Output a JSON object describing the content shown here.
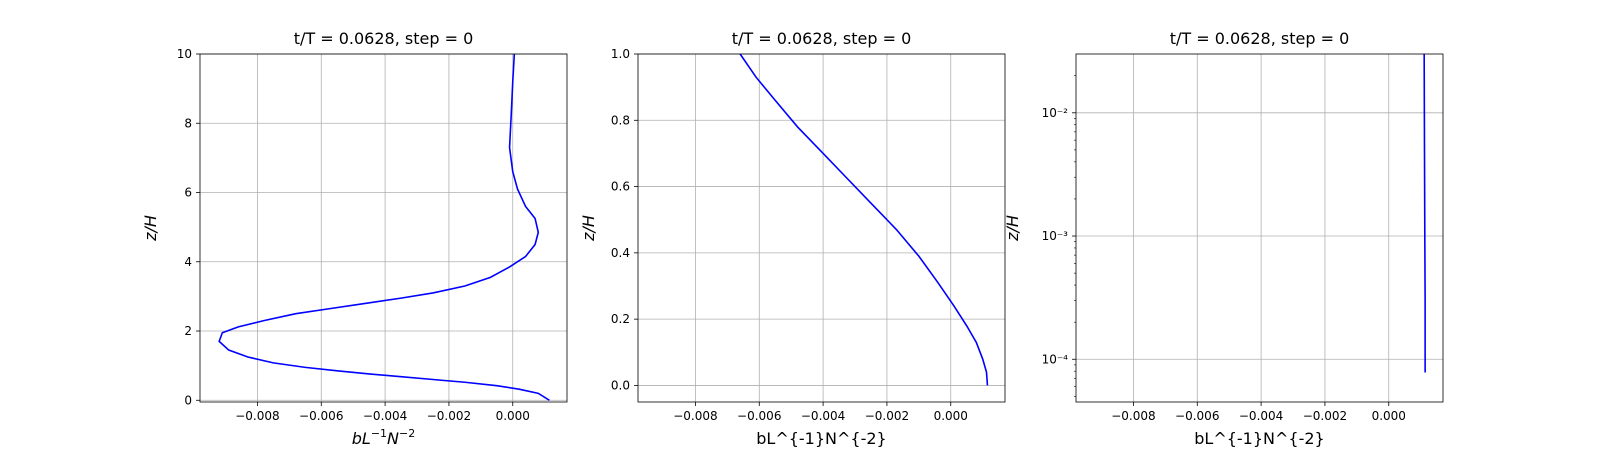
{
  "chart_data": [
    {
      "type": "line",
      "title": "t/T = 0.0628, step = 0",
      "xlabel": "bL^{-1}N^{-2}",
      "xlabel_rendered": true,
      "ylabel": "z/H",
      "xlim": [
        -0.0098,
        0.0017
      ],
      "ylim": [
        -0.05,
        10
      ],
      "yscale": "linear",
      "xticks": [
        -0.008,
        -0.006,
        -0.004,
        -0.002,
        0.0
      ],
      "xtick_labels": [
        "−0.008",
        "−0.006",
        "−0.004",
        "−0.002",
        "0.000"
      ],
      "yticks": [
        0,
        2,
        4,
        6,
        8,
        10
      ],
      "ytick_labels": [
        "0",
        "2",
        "4",
        "6",
        "8",
        "10"
      ],
      "grid": true,
      "series": [
        {
          "color": "#0000ff",
          "x": [
            0.00115,
            0.0008,
            0.0002,
            -0.0005,
            -0.0015,
            -0.0025,
            -0.0035,
            -0.0045,
            -0.0055,
            -0.0065,
            -0.0075,
            -0.0083,
            -0.0089,
            -0.0092,
            -0.0091,
            -0.0086,
            -0.0078,
            -0.0068,
            -0.0057,
            -0.0046,
            -0.0035,
            -0.0025,
            -0.0015,
            -0.0007,
            -0.0001,
            0.0004,
            0.0007,
            0.0008,
            0.0007,
            0.0004,
            0.00015,
            0.0,
            -0.0001,
            -5e-05,
            0.0,
            5e-05
          ],
          "y": [
            0.0,
            0.2,
            0.32,
            0.42,
            0.52,
            0.6,
            0.68,
            0.76,
            0.85,
            0.95,
            1.08,
            1.25,
            1.45,
            1.7,
            1.95,
            2.12,
            2.3,
            2.5,
            2.65,
            2.8,
            2.95,
            3.1,
            3.3,
            3.55,
            3.85,
            4.15,
            4.5,
            4.85,
            5.25,
            5.6,
            6.1,
            6.6,
            7.3,
            8.2,
            9.2,
            10.0
          ]
        }
      ]
    },
    {
      "type": "line",
      "title": "t/T = 0.0628, step = 0",
      "xlabel": "bL^{-1}N^{-2}",
      "ylabel": "z/H",
      "xlim": [
        -0.0098,
        0.0017
      ],
      "ylim": [
        -0.05,
        1.0
      ],
      "yscale": "linear",
      "xticks": [
        -0.008,
        -0.006,
        -0.004,
        -0.002,
        0.0
      ],
      "xtick_labels": [
        "−0.008",
        "−0.006",
        "−0.004",
        "−0.002",
        "0.000"
      ],
      "yticks": [
        0.0,
        0.2,
        0.4,
        0.6,
        0.8,
        1.0
      ],
      "ytick_labels": [
        "0.0",
        "0.2",
        "0.4",
        "0.6",
        "0.8",
        "1.0"
      ],
      "grid": true,
      "series": [
        {
          "color": "#0000ff",
          "x": [
            0.00115,
            0.00112,
            0.001,
            0.0008,
            0.0005,
            0.0001,
            -0.0004,
            -0.001,
            -0.0017,
            -0.0025,
            -0.0033,
            -0.0041,
            -0.0048,
            -0.0055,
            -0.0061,
            -0.0066
          ],
          "y": [
            0.0,
            0.04,
            0.08,
            0.13,
            0.18,
            0.24,
            0.31,
            0.39,
            0.47,
            0.55,
            0.63,
            0.71,
            0.78,
            0.86,
            0.93,
            1.0
          ]
        }
      ]
    },
    {
      "type": "line",
      "title": "t/T = 0.0628, step = 0",
      "xlabel": "bL^{-1}N^{-2}",
      "ylabel": "z/H",
      "xlim": [
        -0.0098,
        0.0017
      ],
      "ylim": [
        4.5e-05,
        0.03
      ],
      "yscale": "log",
      "xticks": [
        -0.008,
        -0.006,
        -0.004,
        -0.002,
        0.0
      ],
      "xtick_labels": [
        "−0.008",
        "−0.006",
        "−0.004",
        "−0.002",
        "0.000"
      ],
      "yticks": [
        0.0001,
        0.001,
        0.01
      ],
      "ytick_labels": [
        "10⁻⁴",
        "10⁻³",
        "10⁻²"
      ],
      "grid": true,
      "series": [
        {
          "color": "#0000ff",
          "x": [
            0.00114,
            0.00114,
            0.00113,
            0.00112,
            0.00111
          ],
          "y": [
            7.8e-05,
            0.0003,
            0.001,
            0.005,
            0.03
          ]
        }
      ]
    }
  ]
}
